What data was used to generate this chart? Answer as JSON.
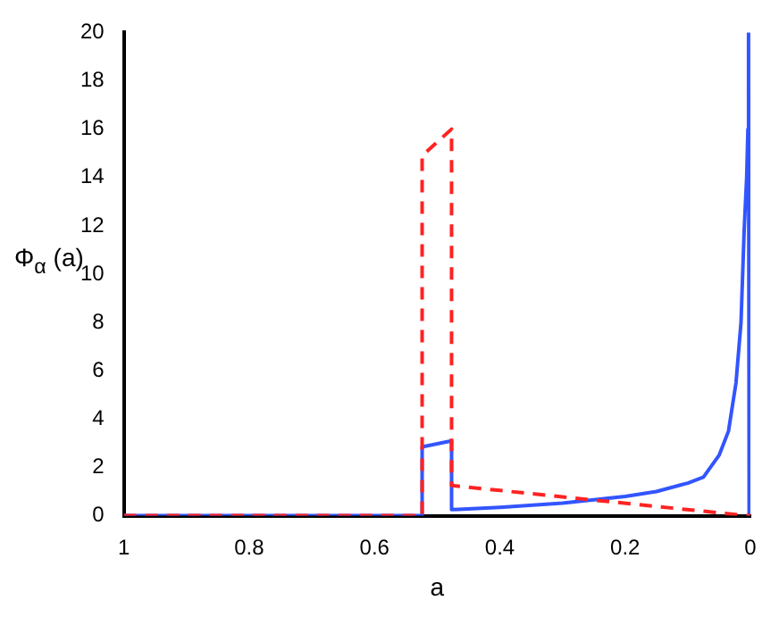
{
  "chart_data": {
    "type": "line",
    "xlabel": "a",
    "ylabel": "Φ$_{α}$ (a)",
    "xlim": [
      1,
      0
    ],
    "xticks": [
      1,
      0.8,
      0.6,
      0.4,
      0.2,
      0
    ],
    "ylim": [
      0,
      20
    ],
    "yticks": [
      0,
      2,
      4,
      6,
      8,
      10,
      12,
      14,
      16,
      18,
      20
    ],
    "grid": false,
    "legend": false,
    "marker": "none",
    "series": [
      {
        "color": "#3355ff",
        "line_style": "solid",
        "x": [
          1,
          0.524,
          0.524,
          0.477,
          0.477,
          0.4,
          0.3,
          0.2,
          0.15,
          0.1,
          0.075,
          0.05,
          0.035,
          0.023,
          0.015,
          0.01,
          0.006,
          0.004,
          0.003,
          0.002,
          0
        ],
        "values": [
          0,
          0,
          2.85,
          3.1,
          0.25,
          0.35,
          0.52,
          0.8,
          1.0,
          1.35,
          1.6,
          2.5,
          3.5,
          5.5,
          8,
          11.8,
          14,
          16,
          20,
          0,
          0
        ]
      },
      {
        "color": "#ff2222",
        "line_style": "dashed",
        "x": [
          1,
          0.524,
          0.524,
          0.477,
          0.477,
          0.005,
          0
        ],
        "values": [
          0,
          0,
          14.9,
          16.0,
          1.25,
          0,
          0
        ]
      }
    ]
  }
}
